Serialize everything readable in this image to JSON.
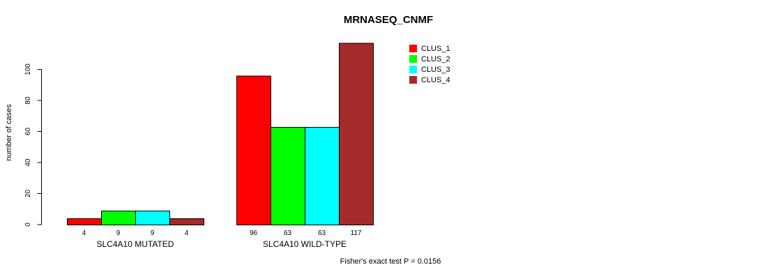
{
  "chart_data": {
    "type": "bar",
    "title": "MRNASEQ_CNMF",
    "ylabel": "number of cases",
    "xlabel": "",
    "ylim": [
      0,
      117
    ],
    "yticks": [
      0,
      20,
      40,
      60,
      80,
      100
    ],
    "grid": false,
    "bar_value_labels": true,
    "legend_position": "top-right",
    "series": [
      {
        "name": "CLUS_1",
        "color": "#FF0000"
      },
      {
        "name": "CLUS_2",
        "color": "#00FF00"
      },
      {
        "name": "CLUS_3",
        "color": "#00FFFF"
      },
      {
        "name": "CLUS_4",
        "color": "#A52A2A"
      }
    ],
    "groups": [
      {
        "label": "SLC4A10 MUTATED",
        "values": [
          4,
          9,
          9,
          4
        ]
      },
      {
        "label": "SLC4A10 WILD-TYPE",
        "values": [
          96,
          63,
          63,
          117
        ]
      }
    ],
    "annotation": "Fisher's exact test P = 0.0156",
    "axis_color": "#000000",
    "bar_border_color": "#000000"
  }
}
